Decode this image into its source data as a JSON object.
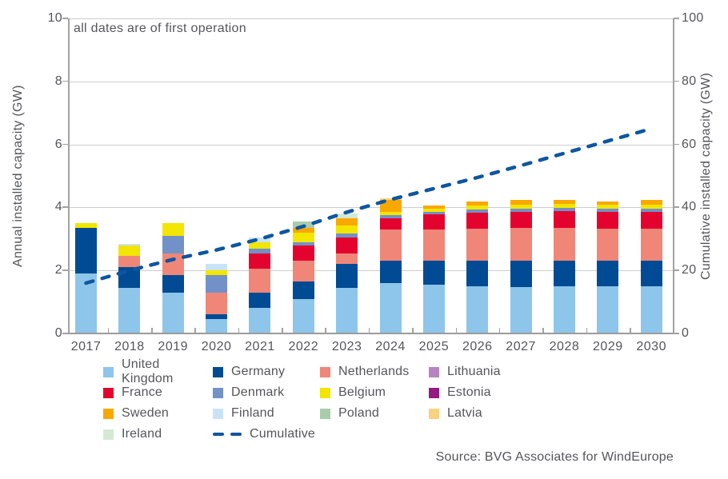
{
  "annotation": "all dates are of first operation",
  "source": "Source: BVG Associates for WindEurope",
  "axes": {
    "left": {
      "title": "Annual installed capacity (GW)",
      "ticks": [
        0,
        2,
        4,
        6,
        8,
        10
      ],
      "max": 10
    },
    "right": {
      "title": "Cumulative installed capacity (GW)",
      "ticks": [
        0,
        20,
        40,
        60,
        80,
        100
      ],
      "max": 100
    }
  },
  "chart_data": {
    "type": "bar",
    "subtype": "stacked-bars-with-cumulative-line",
    "title": "",
    "xlabel": "",
    "ylabel_left": "Annual installed capacity (GW)",
    "ylabel_right": "Cumulative installed capacity (GW)",
    "ylim_left": [
      0,
      10
    ],
    "ylim_right": [
      0,
      100
    ],
    "grid": true,
    "categories": [
      "2017",
      "2018",
      "2019",
      "2020",
      "2021",
      "2022",
      "2023",
      "2024",
      "2025",
      "2026",
      "2027",
      "2028",
      "2029",
      "2030"
    ],
    "series": [
      {
        "name": "United Kingdom",
        "color": "#8dc6ea",
        "values": [
          1.9,
          1.45,
          1.3,
          0.45,
          0.8,
          1.1,
          1.45,
          1.6,
          1.55,
          1.5,
          1.47,
          1.5,
          1.5,
          1.5
        ]
      },
      {
        "name": "Germany",
        "color": "#004b93",
        "values": [
          1.45,
          0.65,
          0.55,
          0.15,
          0.5,
          0.55,
          0.75,
          0.7,
          0.75,
          0.8,
          0.84,
          0.82,
          0.82,
          0.82
        ]
      },
      {
        "name": "Netherlands",
        "color": "#f08678",
        "values": [
          0,
          0.35,
          0.7,
          0.7,
          0.75,
          0.65,
          0.35,
          1.0,
          1.0,
          1.03,
          1.04,
          1.03,
          1.0,
          1.0
        ]
      },
      {
        "name": "France",
        "color": "#e4032e",
        "values": [
          0,
          0,
          0,
          0,
          0.5,
          0.5,
          0.5,
          0.35,
          0.47,
          0.5,
          0.51,
          0.53,
          0.53,
          0.53
        ]
      },
      {
        "name": "Denmark",
        "color": "#7291c8",
        "values": [
          0,
          0,
          0.55,
          0.55,
          0.15,
          0.1,
          0.13,
          0.11,
          0.09,
          0.11,
          0.11,
          0.1,
          0.1,
          0.1
        ]
      },
      {
        "name": "Belgium",
        "color": "#f2e500",
        "values": [
          0.15,
          0.35,
          0.4,
          0.15,
          0.2,
          0.3,
          0.24,
          0.11,
          0.11,
          0.12,
          0.11,
          0.12,
          0.13,
          0.13
        ]
      },
      {
        "name": "Sweden",
        "color": "#f9a800",
        "values": [
          0,
          0,
          0,
          0,
          0,
          0.15,
          0.23,
          0.37,
          0.1,
          0.12,
          0.15,
          0.15,
          0.12,
          0.17
        ]
      },
      {
        "name": "Finland",
        "color": "#c9e3f6",
        "values": [
          0,
          0.05,
          0,
          0.2,
          0.15,
          0,
          0,
          0,
          0,
          0,
          0,
          0,
          0,
          0
        ]
      },
      {
        "name": "Poland",
        "color": "#a9ccab",
        "values": [
          0,
          0,
          0,
          0,
          0,
          0.2,
          0,
          0,
          0,
          0,
          0,
          0,
          0,
          0
        ]
      },
      {
        "name": "Ireland",
        "color": "#d3e9d4",
        "values": [
          0,
          0,
          0,
          0,
          0,
          0,
          0.15,
          0,
          0,
          0,
          0,
          0,
          0,
          0
        ]
      },
      {
        "name": "Latvia",
        "color": "#f8d181",
        "values": [
          0,
          0,
          0,
          0,
          0,
          0,
          0,
          0.06,
          0,
          0,
          0,
          0,
          0,
          0
        ]
      },
      {
        "name": "Lithuania",
        "color": "#b685c0",
        "values": [
          0,
          0,
          0,
          0,
          0,
          0,
          0,
          0,
          0,
          0,
          0,
          0,
          0,
          0
        ]
      },
      {
        "name": "Estonia",
        "color": "#951b81",
        "values": [
          0,
          0,
          0,
          0,
          0,
          0,
          0,
          0,
          0,
          0,
          0,
          0,
          0,
          0
        ]
      }
    ],
    "line": {
      "name": "Cumulative",
      "color": "#0e56a0",
      "axis": "right",
      "values": [
        16,
        20,
        23.5,
        26.5,
        30,
        34,
        38.5,
        42.5,
        46,
        49.5,
        53.3,
        57.2,
        61.1,
        65
      ]
    },
    "legend_position": "bottom"
  },
  "legend": {
    "items": [
      {
        "label": "United Kingdom",
        "color": "#8dc6ea",
        "type": "swatch"
      },
      {
        "label": "Germany",
        "color": "#004b93",
        "type": "swatch"
      },
      {
        "label": "Netherlands",
        "color": "#f08678",
        "type": "swatch"
      },
      {
        "label": "Lithuania",
        "color": "#b685c0",
        "type": "swatch"
      },
      {
        "label": "France",
        "color": "#e4032e",
        "type": "swatch"
      },
      {
        "label": "Denmark",
        "color": "#7291c8",
        "type": "swatch"
      },
      {
        "label": "Belgium",
        "color": "#f2e500",
        "type": "swatch"
      },
      {
        "label": "Estonia",
        "color": "#951b81",
        "type": "swatch"
      },
      {
        "label": "Sweden",
        "color": "#f9a800",
        "type": "swatch"
      },
      {
        "label": "Finland",
        "color": "#c9e3f6",
        "type": "swatch"
      },
      {
        "label": "Poland",
        "color": "#a9ccab",
        "type": "swatch"
      },
      {
        "label": "Latvia",
        "color": "#f8d181",
        "type": "swatch"
      },
      {
        "label": "Ireland",
        "color": "#d3e9d4",
        "type": "swatch"
      },
      {
        "label": "Cumulative",
        "color": "#0e56a0",
        "type": "line"
      }
    ]
  }
}
